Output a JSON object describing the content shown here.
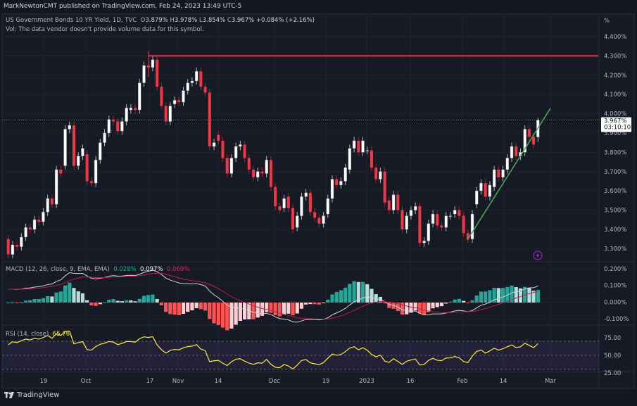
{
  "header": {
    "publisher": "MarkNewtonCMT published on TradingView.com, Feb 24, 2023 13:49 UTC-5"
  },
  "legend": {
    "symbol": "US Government Bonds 10 YR Yield, 1D, TVC",
    "o_label": "O",
    "o": "3.879%",
    "h_label": "H",
    "h": "3.978%",
    "l_label": "L",
    "l": "3.854%",
    "c_label": "C",
    "c": "3.967%",
    "change": "+0.084% (+2.16%)",
    "vol_note": "Vol: The data vendor doesn't provide volume data for this symbol."
  },
  "price_axis": {
    "unit": "%",
    "ticks": [
      "4.400%",
      "4.300%",
      "4.200%",
      "4.100%",
      "4.000%",
      "3.900%",
      "3.800%",
      "3.700%",
      "3.600%",
      "3.500%",
      "3.400%",
      "3.300%"
    ],
    "last_price": "3.967%",
    "countdown": "03:10:10"
  },
  "macd": {
    "label": "MACD (12, 26, close, 9, EMA, EMA)",
    "histogram": "0.028%",
    "macd": "0.097%",
    "signal": "0.069%",
    "ticks": [
      "0.200%",
      "0.100%",
      "0.000%",
      "-0.100%"
    ]
  },
  "rsi": {
    "label": "RSI (14, close)",
    "value": "65.76",
    "ticks": [
      "75.00",
      "50.00",
      "25.00"
    ]
  },
  "time_axis": [
    "19",
    "Oct",
    "17",
    "Nov",
    "14",
    "Dec",
    "19",
    "2023",
    "16",
    "Feb",
    "14",
    "Mar"
  ],
  "footer": {
    "brand": "TradingView"
  },
  "colors": {
    "background": "#161a25",
    "up": "#ffffff",
    "down": "#f23645",
    "resistance_line": "#f23645",
    "trendline": "#4caf50",
    "macd_line": "#d1d4dc",
    "signal_line": "#c2185b",
    "rsi_line": "#ffeb3b",
    "hist_up_strong": "#26a69a",
    "hist_up_weak": "#b2dfdb",
    "hist_down_strong": "#ff5252",
    "hist_down_weak": "#ffcdd2"
  },
  "chart_data": {
    "type": "candlestick",
    "ylim": [
      3.25,
      4.45
    ],
    "resistance_level": 4.3,
    "last_candle": {
      "open": 3.879,
      "high": 3.978,
      "low": 3.854,
      "close": 3.967
    },
    "candles_open_close": [
      [
        3.35,
        3.27
      ],
      [
        3.27,
        3.32
      ],
      [
        3.32,
        3.31
      ],
      [
        3.31,
        3.36
      ],
      [
        3.36,
        3.41
      ],
      [
        3.41,
        3.4
      ],
      [
        3.4,
        3.45
      ],
      [
        3.45,
        3.44
      ],
      [
        3.44,
        3.49
      ],
      [
        3.49,
        3.56
      ],
      [
        3.56,
        3.53
      ],
      [
        3.53,
        3.71
      ],
      [
        3.71,
        3.69
      ],
      [
        3.73,
        3.92
      ],
      [
        3.92,
        3.94
      ],
      [
        3.94,
        3.73
      ],
      [
        3.73,
        3.78
      ],
      [
        3.78,
        3.82
      ],
      [
        3.79,
        3.65
      ],
      [
        3.65,
        3.64
      ],
      [
        3.64,
        3.76
      ],
      [
        3.76,
        3.85
      ],
      [
        3.85,
        3.9
      ],
      [
        3.9,
        3.97
      ],
      [
        3.97,
        3.96
      ],
      [
        3.96,
        3.91
      ],
      [
        3.91,
        3.96
      ],
      [
        3.96,
        4.03
      ],
      [
        4.02,
        4.03
      ],
      [
        4.03,
        4.02
      ],
      [
        4.02,
        4.16
      ],
      [
        4.16,
        4.25
      ],
      [
        4.25,
        4.24
      ],
      [
        4.24,
        4.28
      ],
      [
        4.28,
        4.14
      ],
      [
        4.14,
        4.04
      ],
      [
        4.04,
        3.96
      ],
      [
        3.96,
        4.04
      ],
      [
        4.05,
        4.07
      ],
      [
        4.07,
        4.06
      ],
      [
        4.06,
        4.12
      ],
      [
        4.12,
        4.16
      ],
      [
        4.16,
        4.17
      ],
      [
        4.17,
        4.22
      ],
      [
        4.22,
        4.14
      ],
      [
        4.14,
        4.11
      ],
      [
        4.11,
        3.83
      ],
      [
        3.83,
        3.85
      ],
      [
        3.89,
        3.86
      ],
      [
        3.86,
        3.77
      ],
      [
        3.77,
        3.69
      ],
      [
        3.69,
        3.77
      ],
      [
        3.77,
        3.83
      ],
      [
        3.83,
        3.84
      ],
      [
        3.84,
        3.77
      ],
      [
        3.77,
        3.71
      ],
      [
        3.71,
        3.67
      ],
      [
        3.67,
        3.7
      ],
      [
        3.7,
        3.69
      ],
      [
        3.69,
        3.76
      ],
      [
        3.76,
        3.62
      ],
      [
        3.62,
        3.52
      ],
      [
        3.52,
        3.5
      ],
      [
        3.51,
        3.56
      ],
      [
        3.57,
        3.51
      ],
      [
        3.51,
        3.4
      ],
      [
        3.41,
        3.47
      ],
      [
        3.47,
        3.57
      ],
      [
        3.57,
        3.59
      ],
      [
        3.59,
        3.49
      ],
      [
        3.49,
        3.46
      ],
      [
        3.46,
        3.43
      ],
      [
        3.43,
        3.47
      ],
      [
        3.48,
        3.56
      ],
      [
        3.56,
        3.66
      ],
      [
        3.66,
        3.63
      ],
      [
        3.63,
        3.65
      ],
      [
        3.65,
        3.72
      ],
      [
        3.71,
        3.82
      ],
      [
        3.82,
        3.86
      ],
      [
        3.86,
        3.8
      ],
      [
        3.8,
        3.86
      ],
      [
        3.81,
        3.81
      ],
      [
        3.81,
        3.72
      ],
      [
        3.72,
        3.66
      ],
      [
        3.66,
        3.7
      ],
      [
        3.7,
        3.54
      ],
      [
        3.55,
        3.5
      ],
      [
        3.5,
        3.58
      ],
      [
        3.58,
        3.5
      ],
      [
        3.5,
        3.4
      ],
      [
        3.4,
        3.47
      ],
      [
        3.47,
        3.5
      ],
      [
        3.5,
        3.52
      ],
      [
        3.52,
        3.33
      ],
      [
        3.33,
        3.34
      ],
      [
        3.34,
        3.43
      ],
      [
        3.43,
        3.48
      ],
      [
        3.48,
        3.42
      ],
      [
        3.42,
        3.41
      ],
      [
        3.41,
        3.47
      ],
      [
        3.47,
        3.47
      ],
      [
        3.48,
        3.5
      ],
      [
        3.5,
        3.47
      ],
      [
        3.47,
        3.38
      ],
      [
        3.38,
        3.35
      ],
      [
        3.35,
        3.48
      ],
      [
        3.53,
        3.6
      ],
      [
        3.6,
        3.64
      ],
      [
        3.64,
        3.57
      ],
      [
        3.57,
        3.63
      ],
      [
        3.62,
        3.71
      ],
      [
        3.71,
        3.67
      ],
      [
        3.67,
        3.71
      ],
      [
        3.71,
        3.77
      ],
      [
        3.77,
        3.83
      ],
      [
        3.83,
        3.78
      ],
      [
        3.78,
        3.8
      ],
      [
        3.8,
        3.92
      ],
      [
        3.92,
        3.88
      ],
      [
        3.88,
        3.84
      ],
      [
        3.879,
        3.967
      ]
    ]
  }
}
